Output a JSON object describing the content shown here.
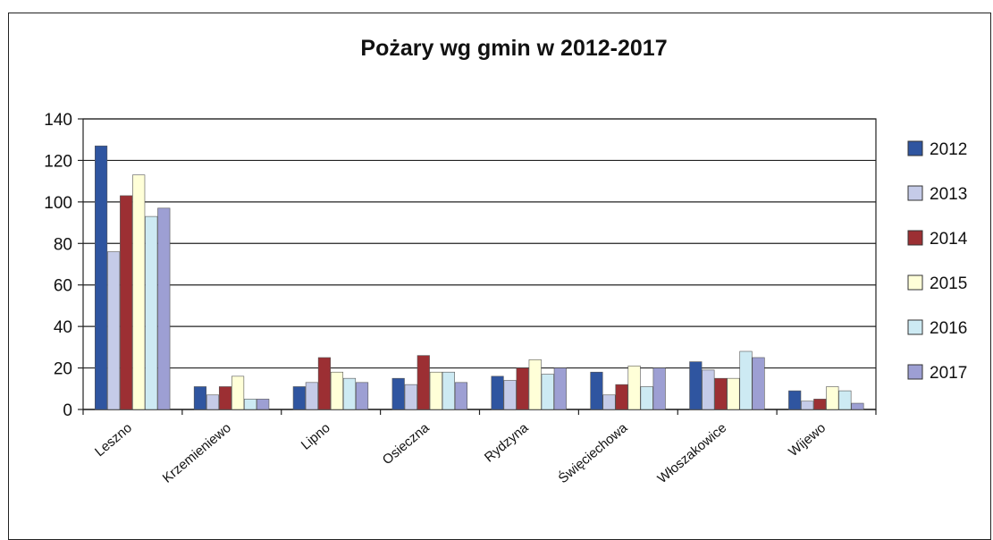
{
  "chart_data": {
    "type": "bar",
    "title": "Pożary wg gmin w 2012-2017",
    "categories": [
      "Leszno",
      "Krzemieniewo",
      "Lipno",
      "Osieczna",
      "Rydzyna",
      "Święciechowa",
      "Włoszakowice",
      "Wijewo"
    ],
    "series": [
      {
        "name": "2012",
        "color": "#2f55a0",
        "values": [
          127,
          11,
          11,
          15,
          16,
          18,
          23,
          9
        ]
      },
      {
        "name": "2013",
        "color": "#c5cbe8",
        "values": [
          76,
          7,
          13,
          12,
          14,
          7,
          19,
          4
        ]
      },
      {
        "name": "2014",
        "color": "#9c2f33",
        "values": [
          103,
          11,
          25,
          26,
          20,
          12,
          15,
          5
        ]
      },
      {
        "name": "2015",
        "color": "#ffffd8",
        "values": [
          113,
          16,
          18,
          18,
          24,
          21,
          15,
          11
        ]
      },
      {
        "name": "2016",
        "color": "#cdeaf3",
        "values": [
          93,
          5,
          15,
          18,
          17,
          11,
          28,
          9
        ]
      },
      {
        "name": "2017",
        "color": "#9d9fd3",
        "values": [
          97,
          5,
          13,
          13,
          20,
          20,
          25,
          3
        ]
      }
    ],
    "ylim": [
      0,
      140
    ],
    "yticks": [
      0,
      20,
      40,
      60,
      80,
      100,
      120,
      140
    ],
    "grid": true,
    "legend_position": "right"
  }
}
